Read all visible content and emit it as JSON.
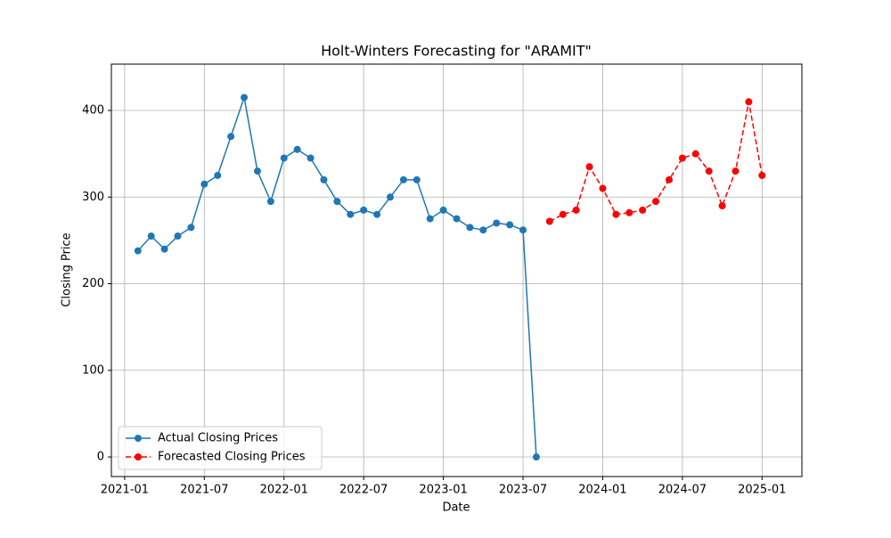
{
  "chart_data": {
    "type": "line",
    "title": "Holt-Winters Forecasting for \"ARAMIT\"",
    "xlabel": "Date",
    "ylabel": "Closing Price",
    "xlim": [
      "2020-12",
      "2025-04"
    ],
    "xticks": [
      "2021-01",
      "2021-07",
      "2022-01",
      "2022-07",
      "2023-01",
      "2023-07",
      "2024-01",
      "2024-07",
      "2025-01"
    ],
    "ylim": [
      -22.6,
      453.5
    ],
    "yticks": [
      0,
      100,
      200,
      300,
      400
    ],
    "grid": true,
    "legend": "lower left",
    "series": [
      {
        "name": "Actual Closing Prices",
        "color": "#1f77b4",
        "linestyle": "solid",
        "x": [
          "2021-02",
          "2021-03",
          "2021-04",
          "2021-05",
          "2021-06",
          "2021-07",
          "2021-08",
          "2021-09",
          "2021-10",
          "2021-11",
          "2021-12",
          "2022-01",
          "2022-02",
          "2022-03",
          "2022-04",
          "2022-05",
          "2022-06",
          "2022-07",
          "2022-08",
          "2022-09",
          "2022-10",
          "2022-11",
          "2022-12",
          "2023-01",
          "2023-02",
          "2023-03",
          "2023-04",
          "2023-05",
          "2023-06",
          "2023-07",
          "2023-08"
        ],
        "values": [
          238,
          255,
          240,
          255,
          265,
          315,
          325,
          370,
          415,
          330,
          295,
          345,
          355,
          345,
          320,
          295,
          280,
          285,
          280,
          300,
          320,
          320,
          275,
          285,
          275,
          265,
          262,
          270,
          268,
          262,
          0
        ]
      },
      {
        "name": "Forecasted Closing Prices",
        "color": "#ff0000",
        "linestyle": "dashed",
        "x": [
          "2023-09",
          "2023-10",
          "2023-11",
          "2023-12",
          "2024-01",
          "2024-02",
          "2024-03",
          "2024-04",
          "2024-05",
          "2024-06",
          "2024-07",
          "2024-08",
          "2024-09",
          "2024-10",
          "2024-11",
          "2024-12",
          "2025-01"
        ],
        "values": [
          272,
          280,
          285,
          335,
          310,
          280,
          282,
          285,
          295,
          320,
          345,
          350,
          330,
          290,
          330,
          410,
          325
        ]
      }
    ]
  }
}
